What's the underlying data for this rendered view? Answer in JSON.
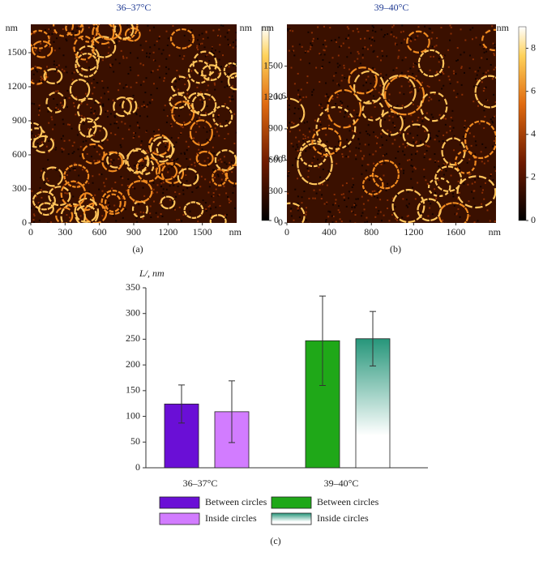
{
  "chart_data": [
    {
      "type": "image",
      "title": "36–37°C",
      "xlabel": "nm",
      "ylabel": "nm",
      "panel_label": "(a)",
      "xlim": [
        0,
        1800
      ],
      "xticks": [
        0,
        300,
        600,
        900,
        1200,
        1500
      ],
      "ylim": [
        0,
        1750
      ],
      "yticks": [
        0,
        300,
        600,
        900,
        1200,
        1500
      ],
      "colorbar": {
        "label": "nm",
        "lim": [
          0,
          2.5
        ],
        "ticks": [
          0,
          0.8,
          1.6
        ]
      }
    },
    {
      "type": "image",
      "title": "39–40°C",
      "xlabel": "nm",
      "ylabel": "nm",
      "panel_label": "(b)",
      "xlim": [
        0,
        1980
      ],
      "xticks": [
        0,
        400,
        800,
        1200,
        1600
      ],
      "ylim": [
        0,
        1900
      ],
      "yticks": [
        0,
        300,
        600,
        900,
        1200,
        1500
      ],
      "colorbar": {
        "label": "nm",
        "lim": [
          0,
          9
        ],
        "ticks": [
          0,
          2,
          4,
          6,
          8
        ]
      }
    },
    {
      "type": "bar",
      "ylabel": "L/, nm",
      "panel_label": "(c)",
      "categories": [
        "36–37°C",
        "39–40°C"
      ],
      "series": [
        {
          "name": "Between circles",
          "colors": [
            "#6a0fd6",
            "#1fa818"
          ],
          "gradient": [
            false,
            false
          ],
          "values": [
            124,
            247
          ],
          "errors": [
            37,
            87
          ]
        },
        {
          "name": "Inside circles",
          "colors": [
            "#d27cff",
            "#26967a"
          ],
          "gradient": [
            false,
            true
          ],
          "values": [
            109,
            251
          ],
          "errors": [
            60,
            53
          ]
        }
      ],
      "ylim": [
        0,
        350
      ],
      "yticks": [
        0,
        50,
        100,
        150,
        200,
        250,
        300,
        350
      ]
    }
  ]
}
